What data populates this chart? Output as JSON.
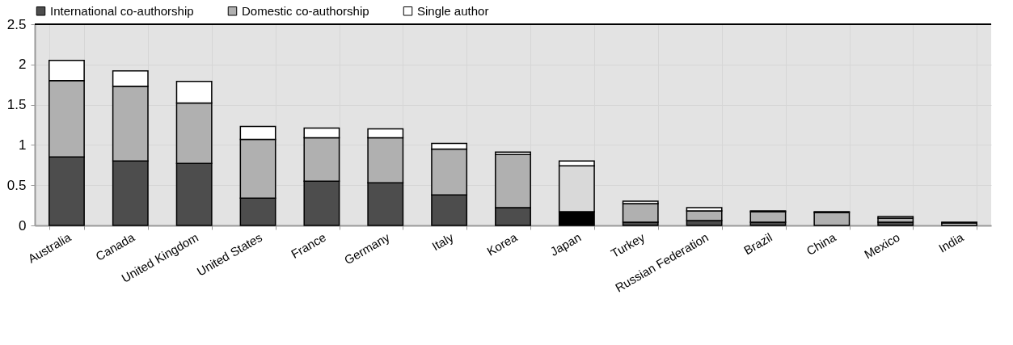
{
  "chart_data": {
    "type": "bar",
    "stacked": true,
    "legend": "top",
    "grid": true,
    "categories": [
      "Australia",
      "Canada",
      "United Kingdom",
      "United States",
      "France",
      "Germany",
      "Italy",
      "Korea",
      "Japan",
      "Turkey",
      "Russian Federation",
      "Brazil",
      "China",
      "Mexico",
      "India"
    ],
    "ylim": [
      0,
      2.5
    ],
    "yticks": [
      0,
      0.5,
      1,
      1.5,
      2,
      2.5
    ],
    "series": [
      {
        "name": "International co-authorship",
        "color": "#4d4d4d",
        "colors": [
          "#4d4d4d",
          "#4d4d4d",
          "#4d4d4d",
          "#4d4d4d",
          "#4d4d4d",
          "#4d4d4d",
          "#4d4d4d",
          "#4d4d4d",
          "#000000",
          "#4d4d4d",
          "#4d4d4d",
          "#4d4d4d",
          "#4d4d4d",
          "#4d4d4d",
          "#4d4d4d"
        ],
        "values": [
          0.85,
          0.8,
          0.77,
          0.34,
          0.55,
          0.53,
          0.38,
          0.22,
          0.17,
          0.04,
          0.06,
          0.04,
          null,
          0.04,
          null
        ]
      },
      {
        "name": "Domestic co-authorship",
        "color": "#b0b0b0",
        "colors": [
          "#b0b0b0",
          "#b0b0b0",
          "#b0b0b0",
          "#b0b0b0",
          "#b0b0b0",
          "#b0b0b0",
          "#b0b0b0",
          "#b0b0b0",
          "#d9d9d9",
          "#b0b0b0",
          "#b0b0b0",
          "#b0b0b0",
          "#b0b0b0",
          "#b0b0b0",
          "#d9d9d9"
        ],
        "values": [
          0.95,
          0.93,
          0.75,
          0.73,
          0.54,
          0.56,
          0.57,
          0.66,
          0.57,
          0.23,
          0.12,
          0.13,
          0.16,
          0.05,
          0.03
        ]
      },
      {
        "name": "Single author",
        "color": "#ffffff",
        "values": [
          0.25,
          0.19,
          0.27,
          0.16,
          0.12,
          0.11,
          0.07,
          0.03,
          0.06,
          0.03,
          0.04,
          0.01,
          0.01,
          0.02,
          0.01
        ]
      }
    ]
  }
}
